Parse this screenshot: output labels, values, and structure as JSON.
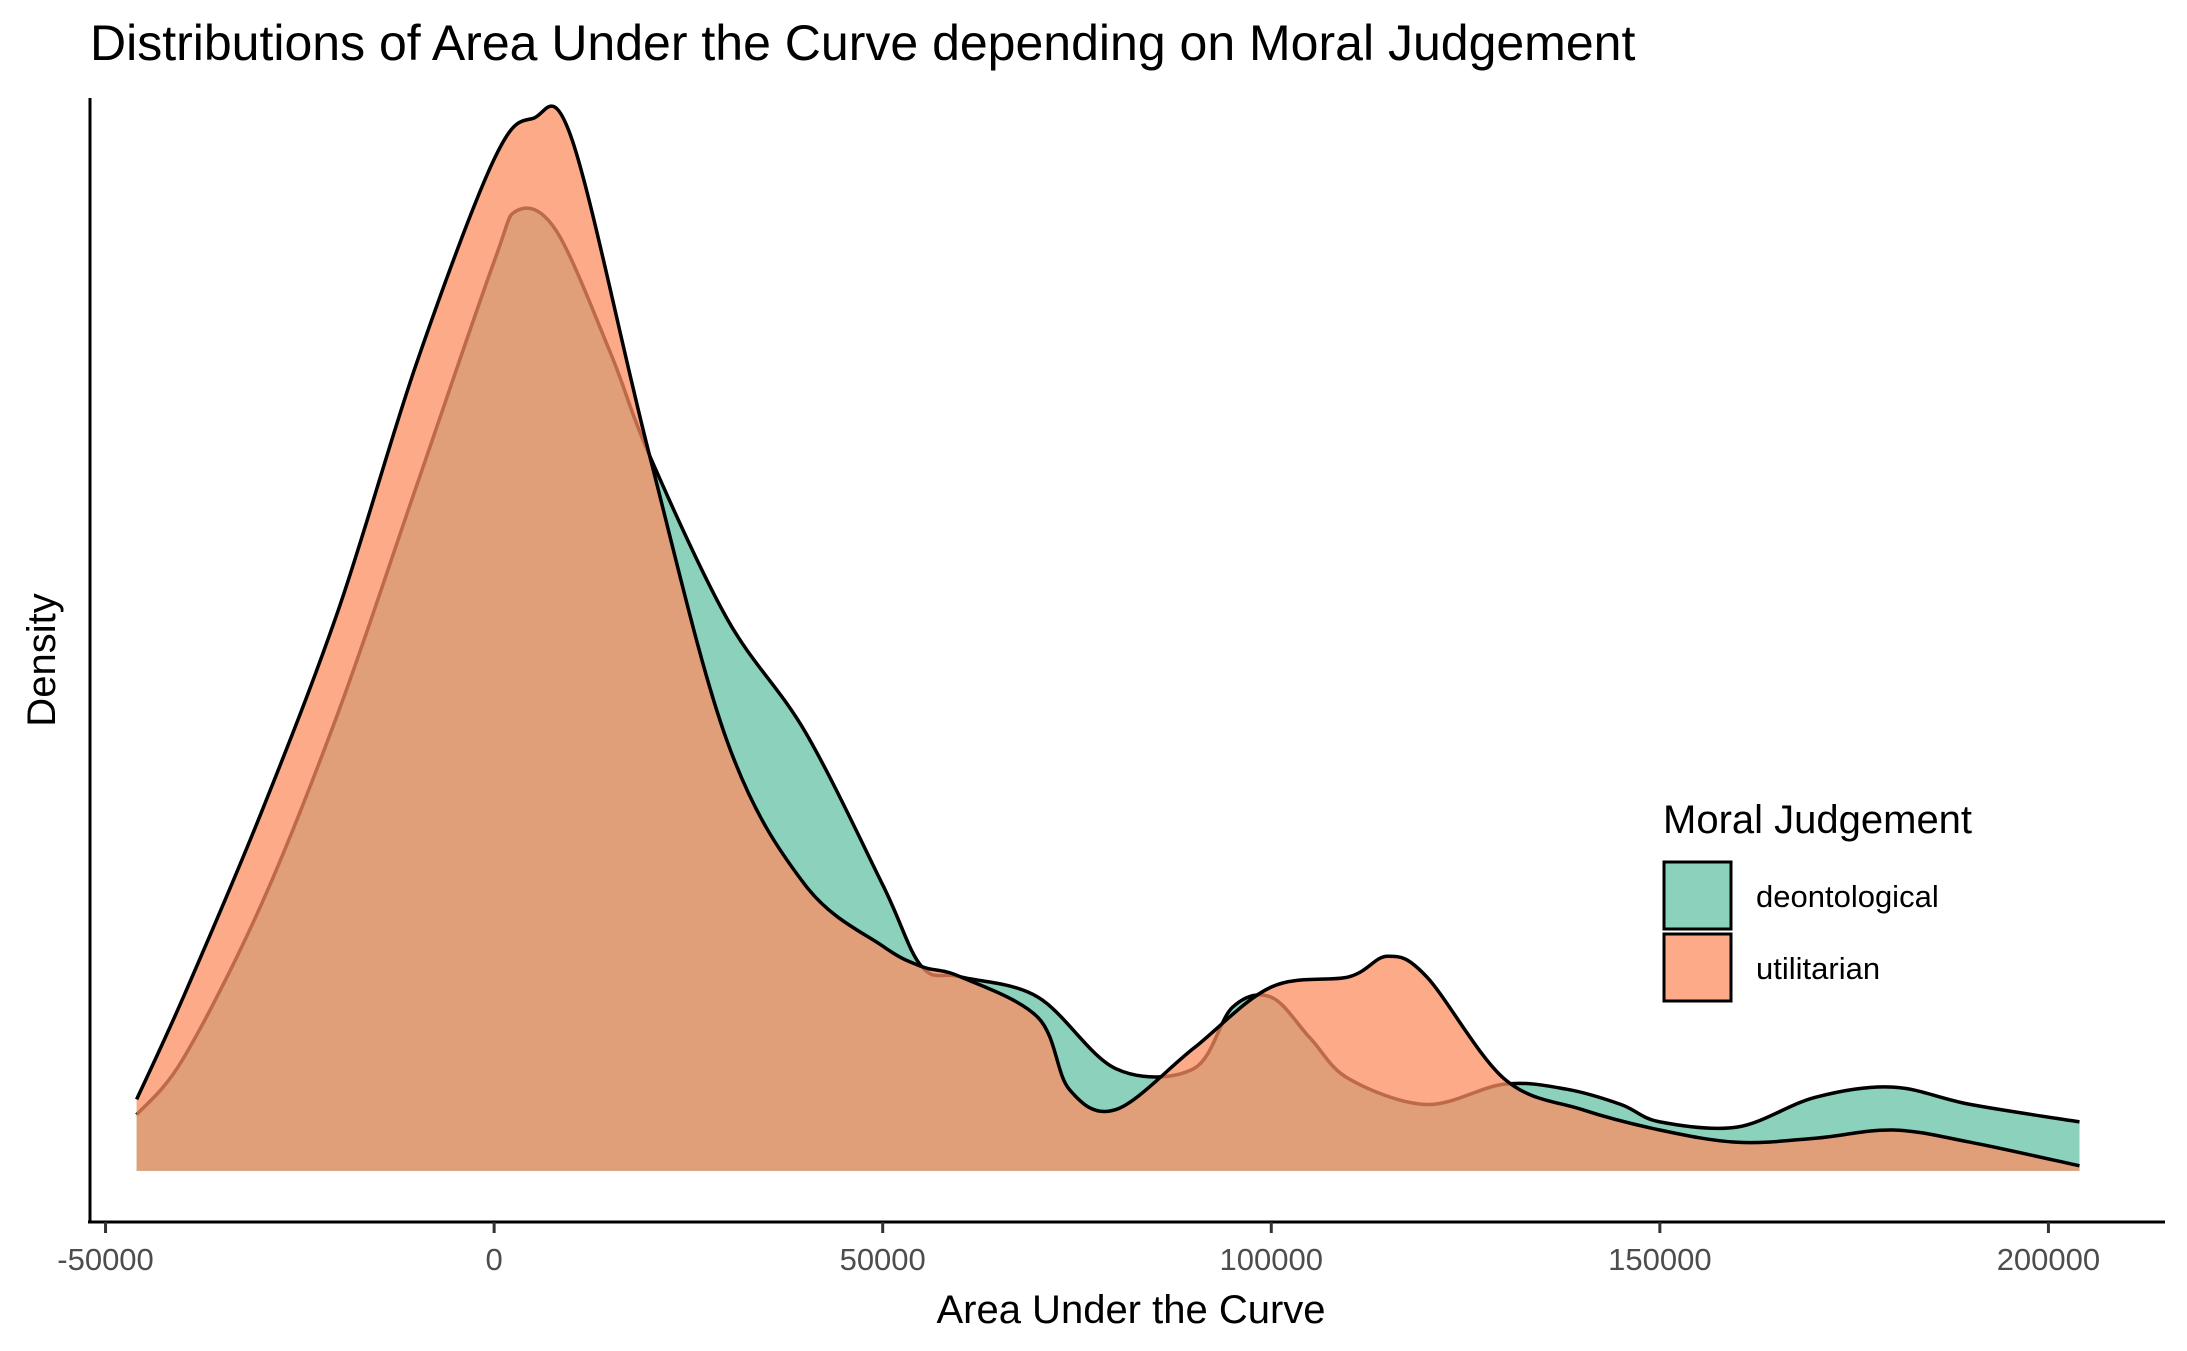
{
  "chart_data": {
    "type": "area",
    "title": "Distributions of Area Under the Curve depending on Moral Judgement",
    "xlabel": "Area Under the Curve",
    "ylabel": "Density",
    "xlim": [
      -52000,
      215000
    ],
    "ylim": [
      -5e-07,
      1.05e-05
    ],
    "x_ticks": [
      -50000,
      0,
      50000,
      100000,
      150000,
      200000
    ],
    "x_tick_labels": [
      "-50000",
      "0",
      "50000",
      "100000",
      "150000",
      "200000"
    ],
    "grid": false,
    "legend": {
      "title": "Moral Judgement",
      "placement": "right",
      "entries": [
        "deontological",
        "utilitarian"
      ]
    },
    "series": [
      {
        "name": "deontological",
        "color": "#66C2A5",
        "x": [
          -46000,
          -40000,
          -30000,
          -20000,
          -10000,
          0,
          3000,
          8000,
          15000,
          20000,
          30000,
          40000,
          50000,
          55000,
          60000,
          70000,
          80000,
          90000,
          95000,
          100000,
          105000,
          110000,
          120000,
          130000,
          138000,
          145000,
          150000,
          160000,
          170000,
          180000,
          190000,
          204000
        ],
        "y": [
          5.5e-07,
          1.1e-06,
          2.6e-06,
          4.5e-06,
          6.7e-06,
          8.9e-06,
          9.4e-06,
          9.2e-06,
          8e-06,
          7e-06,
          5.4e-06,
          4.3e-06,
          2.8e-06,
          2e-06,
          1.9e-06,
          1.7e-06,
          1e-06,
          1e-06,
          1.6e-06,
          1.7e-06,
          1.3e-06,
          9e-07,
          6.5e-07,
          8.5e-07,
          8e-07,
          6.5e-07,
          4.8e-07,
          4.3e-07,
          7.2e-07,
          8.2e-07,
          6.5e-07,
          4.8e-07
        ]
      },
      {
        "name": "utilitarian",
        "color": "#FC8D62",
        "x": [
          -46000,
          -40000,
          -30000,
          -20000,
          -10000,
          0,
          5000,
          10000,
          20000,
          30000,
          40000,
          50000,
          55000,
          60000,
          70000,
          74000,
          80000,
          90000,
          100000,
          110000,
          115000,
          120000,
          130000,
          140000,
          150000,
          160000,
          170000,
          180000,
          190000,
          204000
        ],
        "y": [
          7e-07,
          1.7e-06,
          3.5e-06,
          5.5e-06,
          7.9e-06,
          9.9e-06,
          1.03e-05,
          1.01e-05,
          7e-06,
          4.2e-06,
          2.8e-06,
          2.2e-06,
          2e-06,
          1.9e-06,
          1.5e-06,
          8e-07,
          6e-07,
          1.2e-06,
          1.8e-06,
          1.9e-06,
          2.1e-06,
          1.9e-06,
          9e-07,
          6e-07,
          4e-07,
          2.8e-07,
          3.2e-07,
          4e-07,
          2.8e-07,
          5e-08
        ]
      }
    ]
  }
}
